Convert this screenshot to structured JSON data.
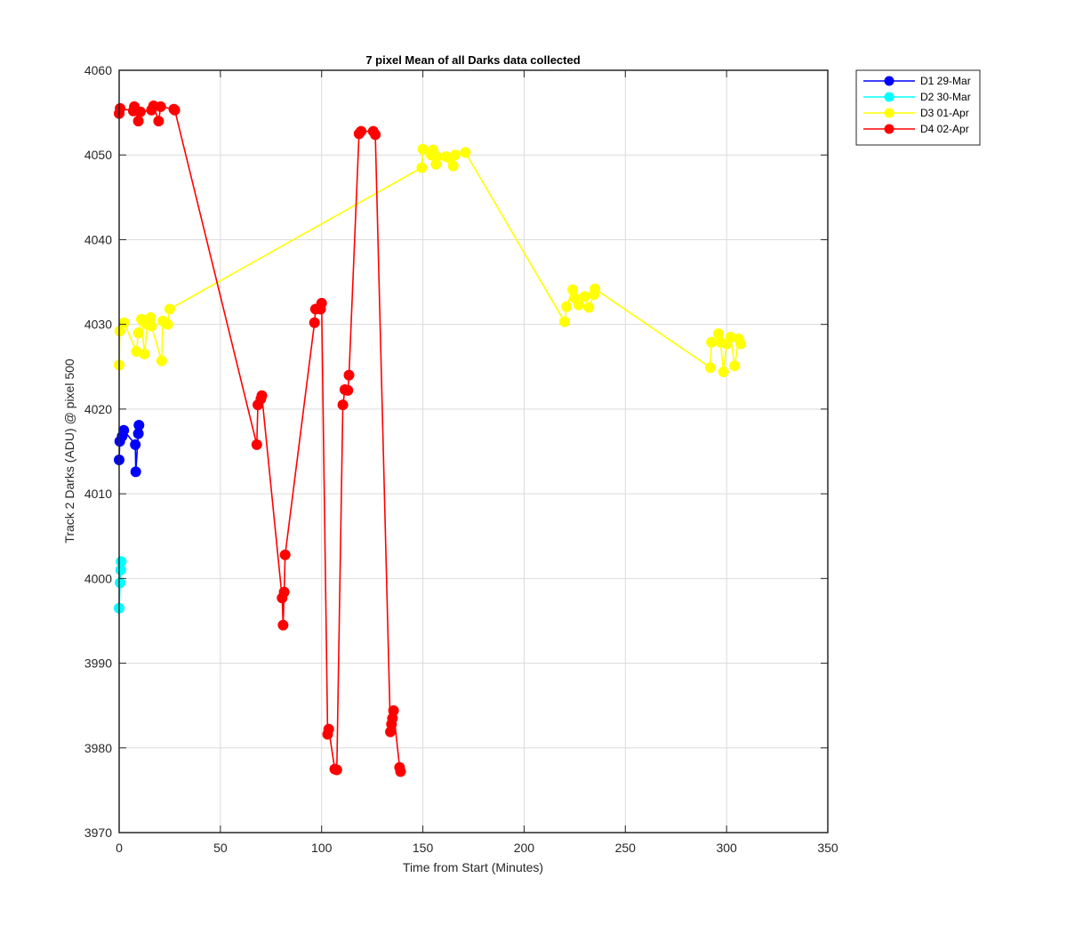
{
  "chart_data": {
    "type": "line",
    "title": "7 pixel Mean of all Darks data collected",
    "xlabel": "Time from Start (Minutes)",
    "ylabel": "Track 2 Darks (ADU) @ pixel 500",
    "xlim": [
      0,
      350
    ],
    "ylim": [
      3970,
      4060
    ],
    "xticks": [
      "0",
      "50",
      "100",
      "150",
      "200",
      "250",
      "300",
      "350"
    ],
    "yticks": [
      "3970",
      "3980",
      "3990",
      "4000",
      "4010",
      "4020",
      "4030",
      "4040",
      "4050",
      "4060"
    ],
    "grid": true,
    "legend_position": "outside-top-right",
    "series": [
      {
        "name": "D1 29-Mar",
        "color": "#0000ff",
        "x": [
          0,
          0.3,
          1.5,
          2.3,
          8,
          8.2,
          9.5,
          9.8
        ],
        "y": [
          4014,
          4016.2,
          4016.8,
          4017.5,
          4015.8,
          4012.6,
          4017.1,
          4018.1
        ]
      },
      {
        "name": "D2 30-Mar",
        "color": "#00ffff",
        "x": [
          0,
          0.5,
          0.8,
          1.0
        ],
        "y": [
          3996.5,
          3999.5,
          4001,
          4002
        ]
      },
      {
        "name": "D3 01-Apr",
        "color": "#ffff00",
        "x": [
          0,
          0.3,
          2.5,
          8.5,
          9.5,
          11,
          12.5,
          14,
          15.5,
          16,
          21,
          21.5,
          24,
          25,
          149.5,
          150,
          154,
          155,
          156.5,
          157,
          161.5,
          163.5,
          165,
          166,
          171,
          220,
          221,
          224,
          225,
          227,
          230,
          232,
          234.5,
          235,
          292,
          292.5,
          296,
          297,
          298.5,
          300,
          302,
          304,
          306,
          307
        ],
        "y": [
          4025.2,
          4029.2,
          4030.2,
          4026.8,
          4029,
          4030.6,
          4026.5,
          4030,
          4030.8,
          4029.8,
          4025.7,
          4030.4,
          4030,
          4031.8,
          4048.5,
          4050.7,
          4050,
          4050.6,
          4048.9,
          4049.8,
          4049.8,
          4049.6,
          4048.7,
          4050,
          4050.3,
          4030.3,
          4032.1,
          4034.1,
          4033.1,
          4032.3,
          4033.3,
          4032,
          4033.5,
          4034.2,
          4024.9,
          4027.9,
          4028.9,
          4027.9,
          4024.4,
          4027.7,
          4028.5,
          4025.1,
          4028.3,
          4027.7
        ]
      },
      {
        "name": "D4 02-Apr",
        "color": "#ff0000",
        "x": [
          0,
          0.5,
          7,
          7.5,
          9.5,
          10.5,
          16,
          17,
          19.5,
          20.5,
          27,
          27.5,
          68,
          68.5,
          70,
          70.5,
          80.5,
          81,
          81.5,
          82,
          96.5,
          97,
          99.5,
          100,
          103,
          103.5,
          106.5,
          107.5,
          110.5,
          111.5,
          113,
          113.5,
          118.5,
          119.5,
          125.5,
          126.5,
          134,
          134.5,
          135,
          135.5,
          138.5,
          139
        ],
        "y": [
          4054.9,
          4055.5,
          4055.2,
          4055.7,
          4054,
          4055.1,
          4055.3,
          4055.8,
          4054,
          4055.7,
          4055.4,
          4055.3,
          4015.8,
          4020.5,
          4021.2,
          4021.6,
          3997.7,
          3994.5,
          3998.4,
          4002.8,
          4030.2,
          4031.8,
          4031.8,
          4032.5,
          3981.6,
          3982.2,
          3977.5,
          3977.4,
          4020.5,
          4022.3,
          4022.2,
          4024,
          4052.5,
          4052.8,
          4052.8,
          4052.4,
          3981.9,
          3982.8,
          3983.5,
          3984.4,
          3977.7,
          3977.2
        ]
      }
    ]
  }
}
